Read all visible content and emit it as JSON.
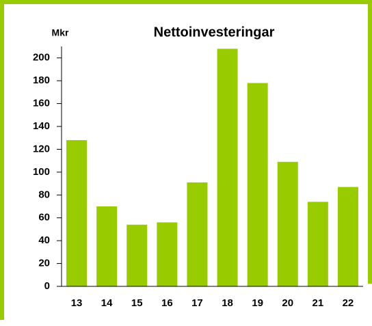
{
  "chart_data": {
    "type": "bar",
    "title": "Nettoinvesteringar",
    "y_label": "Mkr",
    "categories": [
      "13",
      "14",
      "15",
      "16",
      "17",
      "18",
      "19",
      "20",
      "21",
      "22"
    ],
    "values": [
      128,
      70,
      54,
      56,
      91,
      208,
      178,
      109,
      74,
      87
    ],
    "color": "#99cc00",
    "ylim": [
      0,
      210
    ],
    "yticks": [
      0,
      20,
      40,
      60,
      80,
      100,
      120,
      140,
      160,
      180,
      200
    ],
    "grid": false
  }
}
